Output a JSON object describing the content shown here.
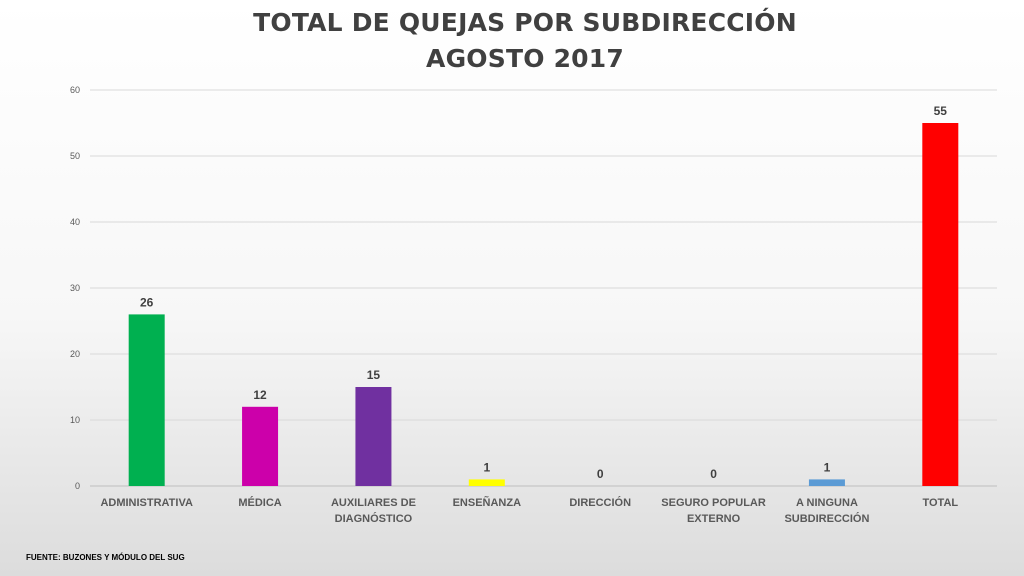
{
  "chart_data": {
    "type": "bar",
    "title": "TOTAL DE QUEJAS POR SUBDIRECCIÓN",
    "subtitle": "AGOSTO 2017",
    "categories": [
      [
        "ADMINISTRATIVA"
      ],
      [
        "MÉDICA"
      ],
      [
        "AUXILIARES DE",
        "DIAGNÓSTICO"
      ],
      [
        "ENSEÑANZA"
      ],
      [
        "DIRECCIÓN"
      ],
      [
        "SEGURO POPULAR",
        "EXTERNO"
      ],
      [
        "A NINGUNA",
        "SUBDIRECCIÓN"
      ],
      [
        "TOTAL"
      ]
    ],
    "values": [
      26,
      12,
      15,
      1,
      0,
      0,
      1,
      55
    ],
    "colors": [
      "#00b050",
      "#cc00aa",
      "#7030a0",
      "#ffff00",
      "#00b050",
      "#00b050",
      "#5b9bd5",
      "#ff0000"
    ],
    "ylim": [
      0,
      60
    ],
    "yticks": [
      0,
      10,
      20,
      30,
      40,
      50,
      60
    ],
    "grid": true,
    "legend": "none"
  },
  "footer": {
    "source": "FUENTE: BUZONES Y MÓDULO DEL SUG"
  }
}
